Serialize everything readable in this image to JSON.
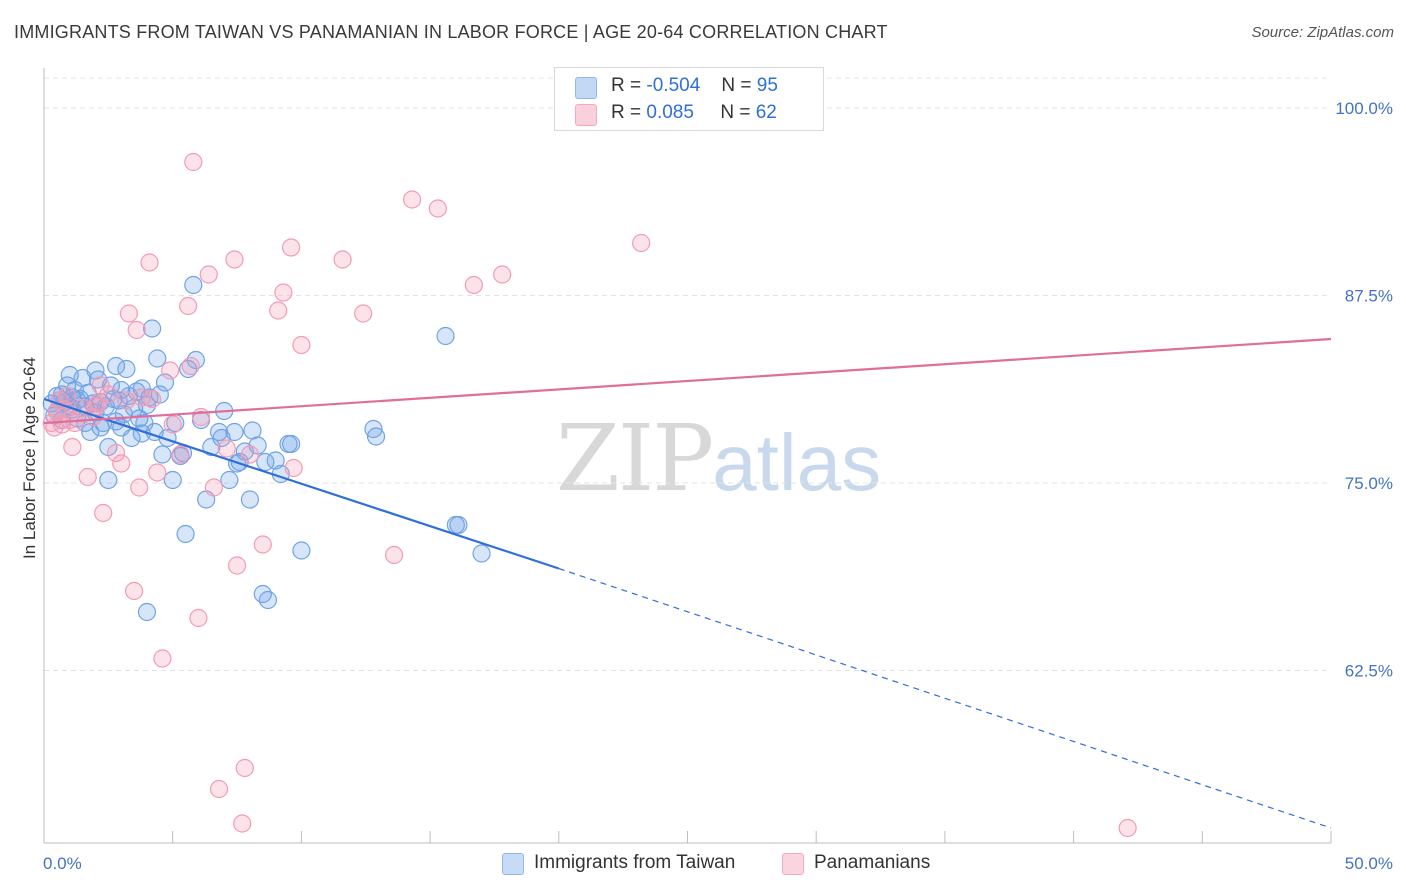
{
  "title": "IMMIGRANTS FROM TAIWAN VS PANAMANIAN IN LABOR FORCE | AGE 20-64 CORRELATION CHART",
  "source": "Source: ZipAtlas.com",
  "watermark": {
    "part1": "ZIP",
    "part2": "atlas"
  },
  "legend_top": [
    {
      "label_r": "R =",
      "r": "-0.504",
      "label_n": "N =",
      "n": "95",
      "color": "#8fb8ec"
    },
    {
      "label_r": "R =",
      "r": "0.085",
      "label_n": "N =",
      "n": "62",
      "color": "#f5a9c0"
    }
  ],
  "legend_bottom": [
    {
      "label": "Immigrants from Taiwan",
      "color": "#8fb8ec"
    },
    {
      "label": "Panamanians",
      "color": "#f5a9c0"
    }
  ],
  "chart_data": {
    "type": "scatter",
    "title": "IMMIGRANTS FROM TAIWAN VS PANAMANIAN IN LABOR FORCE | AGE 20-64 CORRELATION CHART",
    "xlabel": "",
    "ylabel": "In Labor Force | Age 20-64",
    "xlim": [
      0,
      50
    ],
    "ylim": [
      51,
      102
    ],
    "x_tick_labels": [
      "0.0%",
      "50.0%"
    ],
    "y_ticks": [
      62.5,
      75.0,
      87.5,
      100.0
    ],
    "y_tick_labels": [
      "62.5%",
      "75.0%",
      "87.5%",
      "100.0%"
    ],
    "grid": true,
    "series": [
      {
        "name": "Immigrants from Taiwan",
        "color": "#6fa3e6",
        "line_color": "#2f6fd6",
        "trend": {
          "x0": 0,
          "y0": 80.6,
          "x1": 20,
          "y1": 69.3,
          "dash_x1": 50,
          "dash_y1": 52.0
        },
        "points": [
          [
            0.3,
            80.3
          ],
          [
            0.4,
            79.5
          ],
          [
            0.5,
            80.8
          ],
          [
            0.5,
            79.8
          ],
          [
            0.6,
            80.5
          ],
          [
            0.7,
            80.9
          ],
          [
            0.7,
            79.2
          ],
          [
            0.8,
            80.4
          ],
          [
            0.9,
            81.5
          ],
          [
            1.0,
            80.1
          ],
          [
            1.0,
            82.2
          ],
          [
            1.1,
            79.9
          ],
          [
            1.1,
            80.7
          ],
          [
            1.2,
            81.2
          ],
          [
            1.3,
            79.3
          ],
          [
            1.4,
            80.6
          ],
          [
            1.5,
            82.0
          ],
          [
            1.6,
            80.1
          ],
          [
            1.6,
            79.0
          ],
          [
            1.7,
            81.0
          ],
          [
            1.8,
            78.4
          ],
          [
            1.9,
            80.3
          ],
          [
            2.0,
            82.5
          ],
          [
            2.0,
            79.7
          ],
          [
            2.1,
            81.9
          ],
          [
            2.2,
            80.4
          ],
          [
            2.3,
            79.0
          ],
          [
            2.4,
            80.1
          ],
          [
            2.5,
            77.4
          ],
          [
            2.5,
            75.2
          ],
          [
            2.6,
            81.5
          ],
          [
            2.7,
            80.6
          ],
          [
            2.8,
            79.1
          ],
          [
            2.8,
            82.8
          ],
          [
            2.9,
            80.5
          ],
          [
            3.0,
            78.7
          ],
          [
            3.0,
            81.2
          ],
          [
            3.1,
            79.6
          ],
          [
            3.2,
            82.6
          ],
          [
            3.3,
            80.8
          ],
          [
            3.4,
            78.0
          ],
          [
            3.5,
            80.0
          ],
          [
            3.6,
            81.1
          ],
          [
            3.7,
            79.3
          ],
          [
            3.8,
            78.3
          ],
          [
            3.8,
            81.3
          ],
          [
            3.9,
            79.0
          ],
          [
            4.0,
            80.2
          ],
          [
            4.1,
            80.7
          ],
          [
            4.2,
            85.3
          ],
          [
            4.3,
            78.4
          ],
          [
            4.4,
            83.3
          ],
          [
            4.5,
            80.9
          ],
          [
            4.6,
            76.9
          ],
          [
            4.7,
            81.7
          ],
          [
            4.8,
            78.0
          ],
          [
            5.0,
            75.2
          ],
          [
            5.1,
            79.0
          ],
          [
            5.3,
            76.8
          ],
          [
            5.4,
            77.0
          ],
          [
            5.5,
            71.6
          ],
          [
            5.6,
            82.6
          ],
          [
            5.8,
            88.2
          ],
          [
            5.9,
            83.2
          ],
          [
            6.1,
            79.2
          ],
          [
            6.3,
            73.9
          ],
          [
            6.5,
            77.4
          ],
          [
            6.8,
            78.4
          ],
          [
            7.0,
            79.8
          ],
          [
            7.2,
            75.2
          ],
          [
            7.4,
            78.4
          ],
          [
            7.5,
            76.3
          ],
          [
            7.6,
            76.4
          ],
          [
            7.8,
            77.1
          ],
          [
            8.0,
            73.9
          ],
          [
            8.1,
            78.5
          ],
          [
            8.3,
            77.5
          ],
          [
            8.5,
            67.6
          ],
          [
            8.6,
            76.4
          ],
          [
            8.7,
            67.2
          ],
          [
            9.0,
            76.5
          ],
          [
            9.2,
            75.6
          ],
          [
            9.5,
            77.6
          ],
          [
            9.6,
            77.6
          ],
          [
            10.0,
            70.5
          ],
          [
            12.8,
            78.6
          ],
          [
            12.9,
            78.1
          ],
          [
            15.6,
            84.8
          ],
          [
            16.0,
            72.2
          ],
          [
            16.1,
            72.2
          ],
          [
            17.0,
            70.3
          ],
          [
            4.0,
            66.4
          ],
          [
            2.2,
            78.7
          ],
          [
            1.3,
            80.5
          ],
          [
            6.9,
            78.0
          ]
        ]
      },
      {
        "name": "Panamanians",
        "color": "#f39ab5",
        "line_color": "#e06e98",
        "trend": {
          "x0": 0,
          "y0": 79.0,
          "x1": 50,
          "y1": 84.6
        },
        "points": [
          [
            0.3,
            79.0
          ],
          [
            0.4,
            78.7
          ],
          [
            0.5,
            79.8
          ],
          [
            0.6,
            80.5
          ],
          [
            0.7,
            78.9
          ],
          [
            0.8,
            79.9
          ],
          [
            0.9,
            80.8
          ],
          [
            1.0,
            79.2
          ],
          [
            1.1,
            77.4
          ],
          [
            1.2,
            79.0
          ],
          [
            1.5,
            80.0
          ],
          [
            1.7,
            75.4
          ],
          [
            1.9,
            79.4
          ],
          [
            2.0,
            80.1
          ],
          [
            2.1,
            80.3
          ],
          [
            2.2,
            81.5
          ],
          [
            2.3,
            73.0
          ],
          [
            2.5,
            80.9
          ],
          [
            2.8,
            77.0
          ],
          [
            3.0,
            76.3
          ],
          [
            3.2,
            80.5
          ],
          [
            3.3,
            86.3
          ],
          [
            3.5,
            67.8
          ],
          [
            3.6,
            85.2
          ],
          [
            3.7,
            74.7
          ],
          [
            3.8,
            80.7
          ],
          [
            4.1,
            89.7
          ],
          [
            4.2,
            80.6
          ],
          [
            4.4,
            75.7
          ],
          [
            4.6,
            63.3
          ],
          [
            4.9,
            82.5
          ],
          [
            5.0,
            78.9
          ],
          [
            5.3,
            76.9
          ],
          [
            5.6,
            86.8
          ],
          [
            5.7,
            82.8
          ],
          [
            5.8,
            96.4
          ],
          [
            6.0,
            66.0
          ],
          [
            6.1,
            79.4
          ],
          [
            6.4,
            88.9
          ],
          [
            6.6,
            74.7
          ],
          [
            6.8,
            54.6
          ],
          [
            7.1,
            77.3
          ],
          [
            7.4,
            89.9
          ],
          [
            7.5,
            69.5
          ],
          [
            7.7,
            52.3
          ],
          [
            7.8,
            56.0
          ],
          [
            8.0,
            76.9
          ],
          [
            8.5,
            70.9
          ],
          [
            9.1,
            86.5
          ],
          [
            9.3,
            87.7
          ],
          [
            9.6,
            90.7
          ],
          [
            9.7,
            76.0
          ],
          [
            10.0,
            84.2
          ],
          [
            11.6,
            89.9
          ],
          [
            12.4,
            86.3
          ],
          [
            13.6,
            70.2
          ],
          [
            14.3,
            93.9
          ],
          [
            15.3,
            93.3
          ],
          [
            16.7,
            88.2
          ],
          [
            17.8,
            88.9
          ],
          [
            23.2,
            91.0
          ],
          [
            42.1,
            52.0
          ]
        ]
      }
    ]
  }
}
